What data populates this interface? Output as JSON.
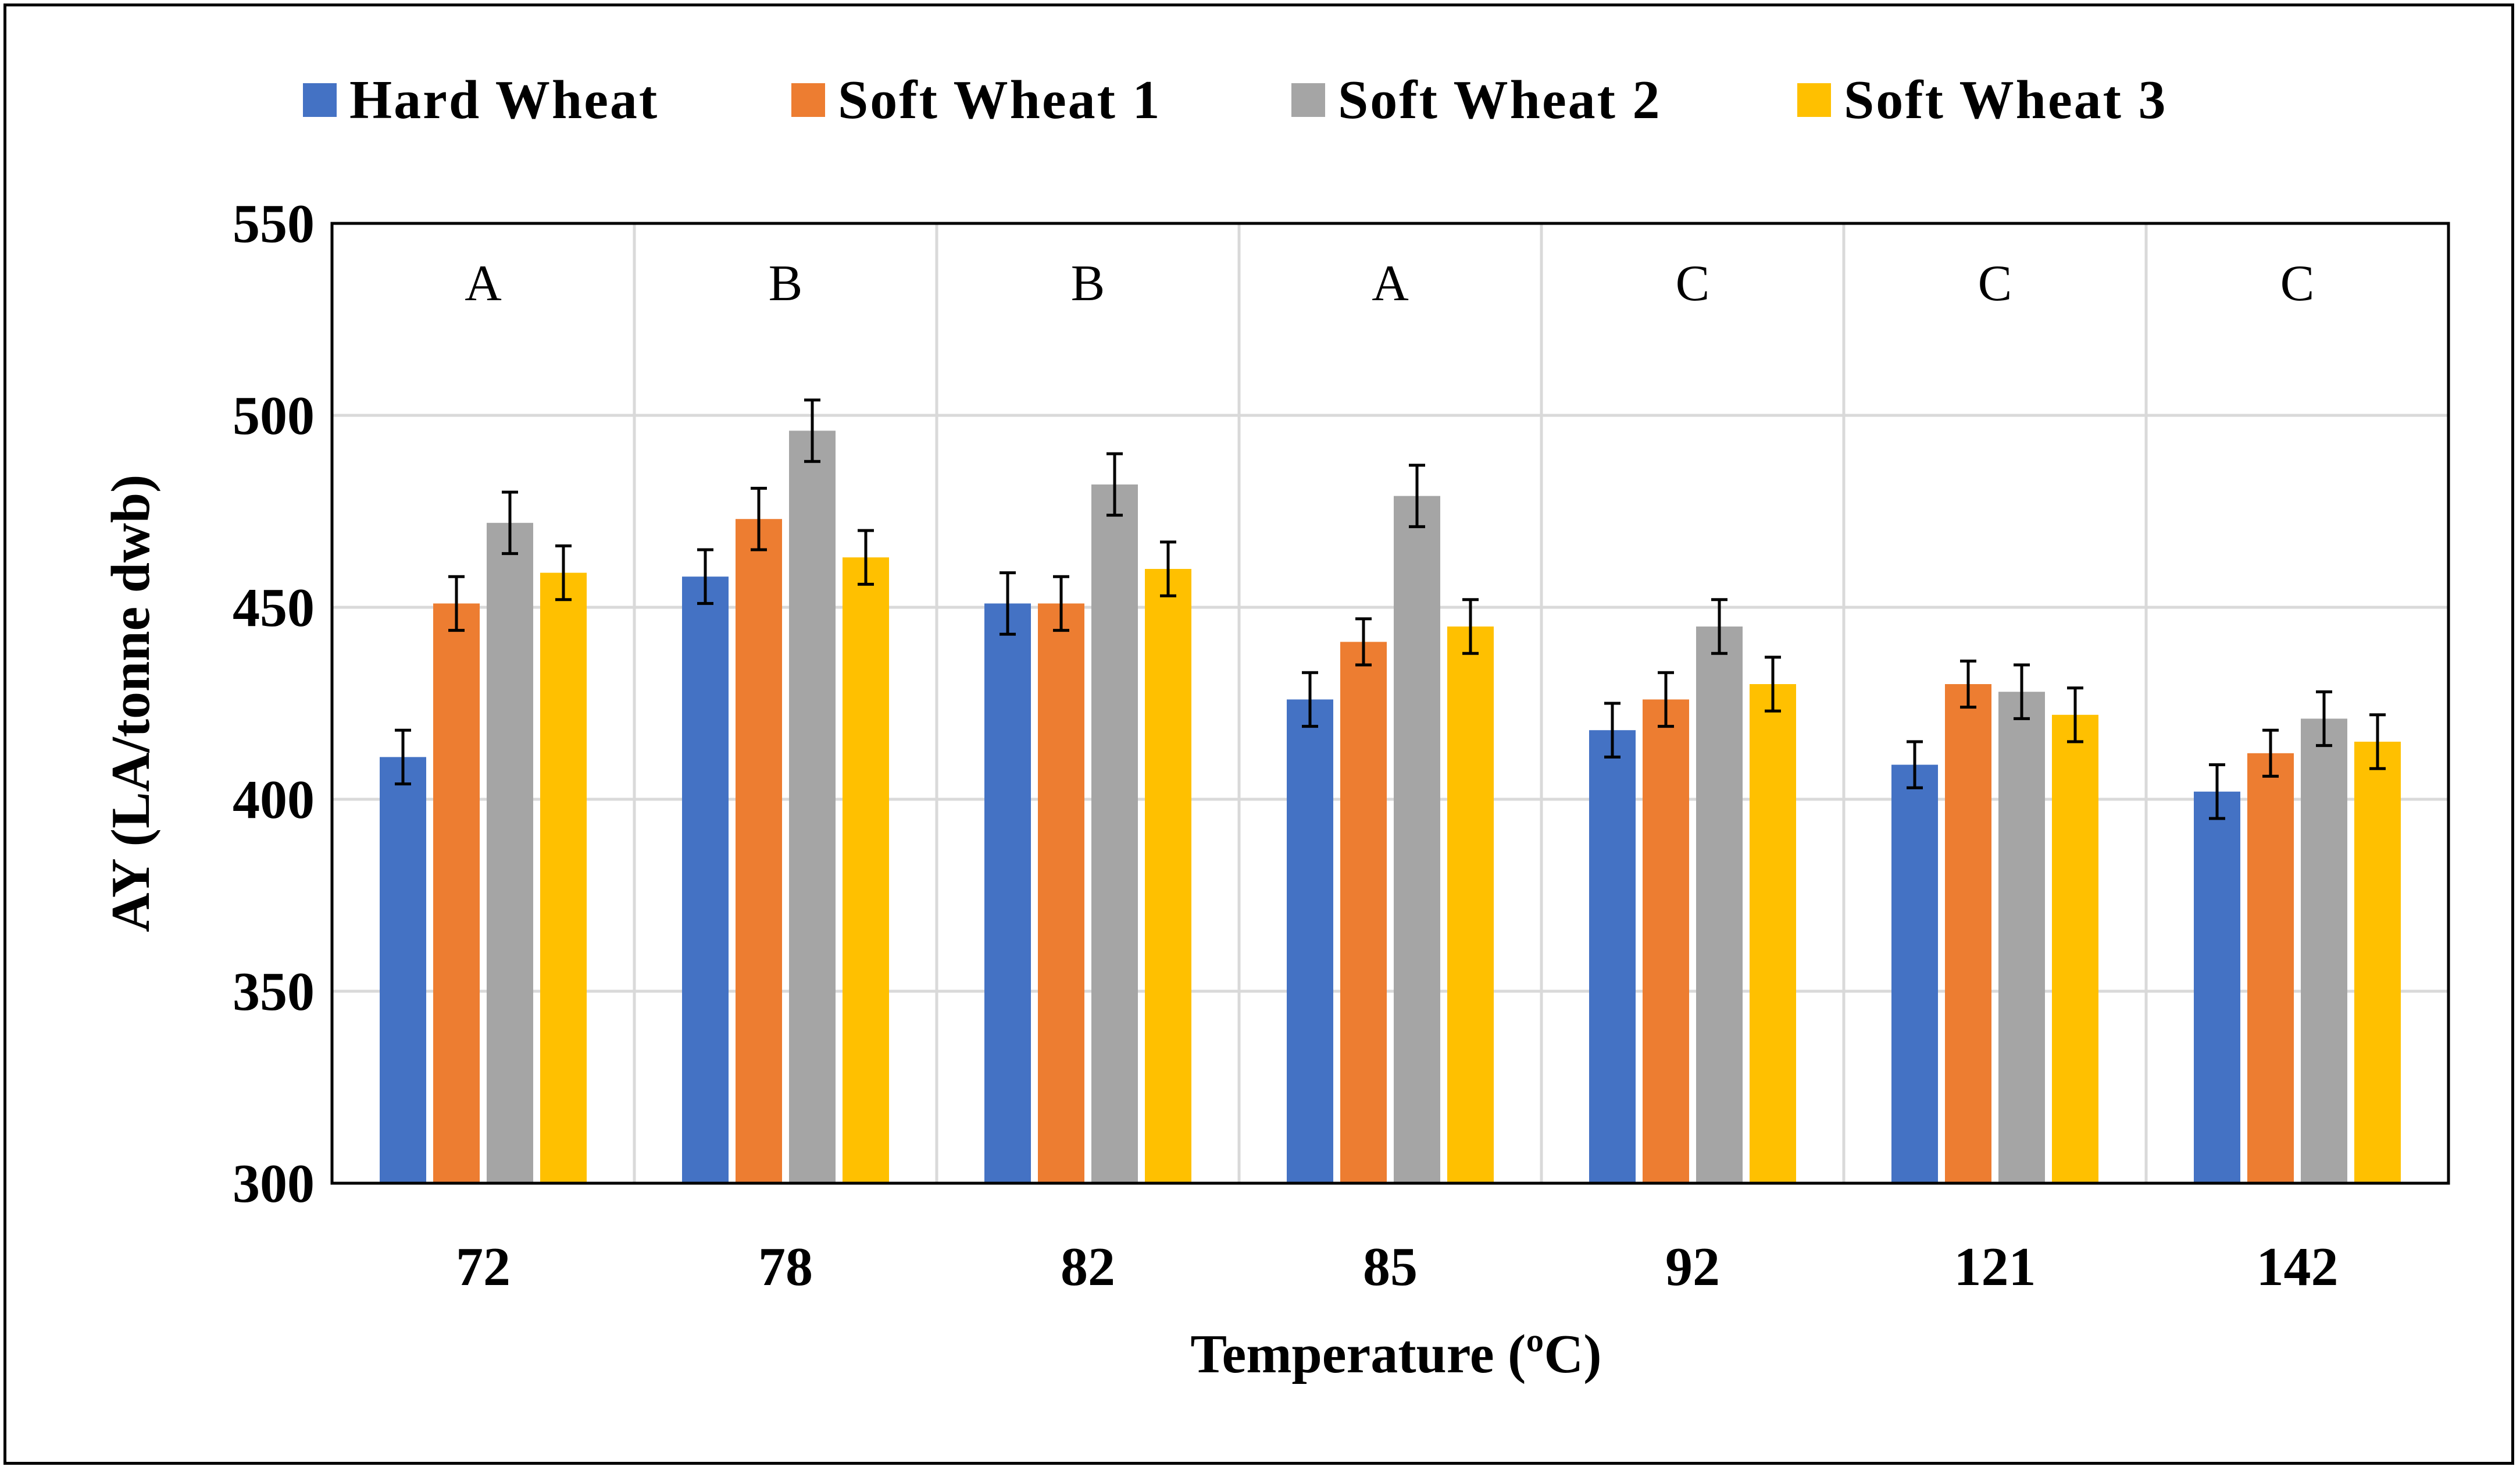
{
  "chart_data": {
    "type": "bar",
    "title": "",
    "xlabel": "Temperature  (ºC)",
    "ylabel": "AY (LA/tonne  dwb)",
    "ylim": [
      300,
      550
    ],
    "yticks": [
      "300",
      "350",
      "400",
      "450",
      "500",
      "550"
    ],
    "ytick_values": [
      300,
      350,
      400,
      450,
      500,
      550
    ],
    "categories": [
      "72",
      "78",
      "82",
      "85",
      "92",
      "121",
      "142"
    ],
    "group_letters": [
      "A",
      "B",
      "B",
      "A",
      "C",
      "C",
      "C"
    ],
    "grid": true,
    "legend_position": "top",
    "series": [
      {
        "name": "Hard Wheat",
        "color": "#4472c4",
        "values": [
          411,
          458,
          451,
          426,
          418,
          409,
          402
        ],
        "errors": [
          7,
          7,
          8,
          7,
          7,
          6,
          7
        ]
      },
      {
        "name": "Soft Wheat 1",
        "color": "#ed7d31",
        "values": [
          451,
          473,
          451,
          441,
          426,
          430,
          412
        ],
        "errors": [
          7,
          8,
          7,
          6,
          7,
          6,
          6
        ]
      },
      {
        "name": "Soft Wheat 2",
        "color": "#a5a5a5",
        "values": [
          472,
          496,
          482,
          479,
          445,
          428,
          421
        ],
        "errors": [
          8,
          8,
          8,
          8,
          7,
          7,
          7
        ]
      },
      {
        "name": "Soft Wheat 3",
        "color": "#ffc000",
        "values": [
          459,
          463,
          460,
          445,
          430,
          422,
          415
        ],
        "errors": [
          7,
          7,
          7,
          7,
          7,
          7,
          7
        ]
      }
    ]
  }
}
